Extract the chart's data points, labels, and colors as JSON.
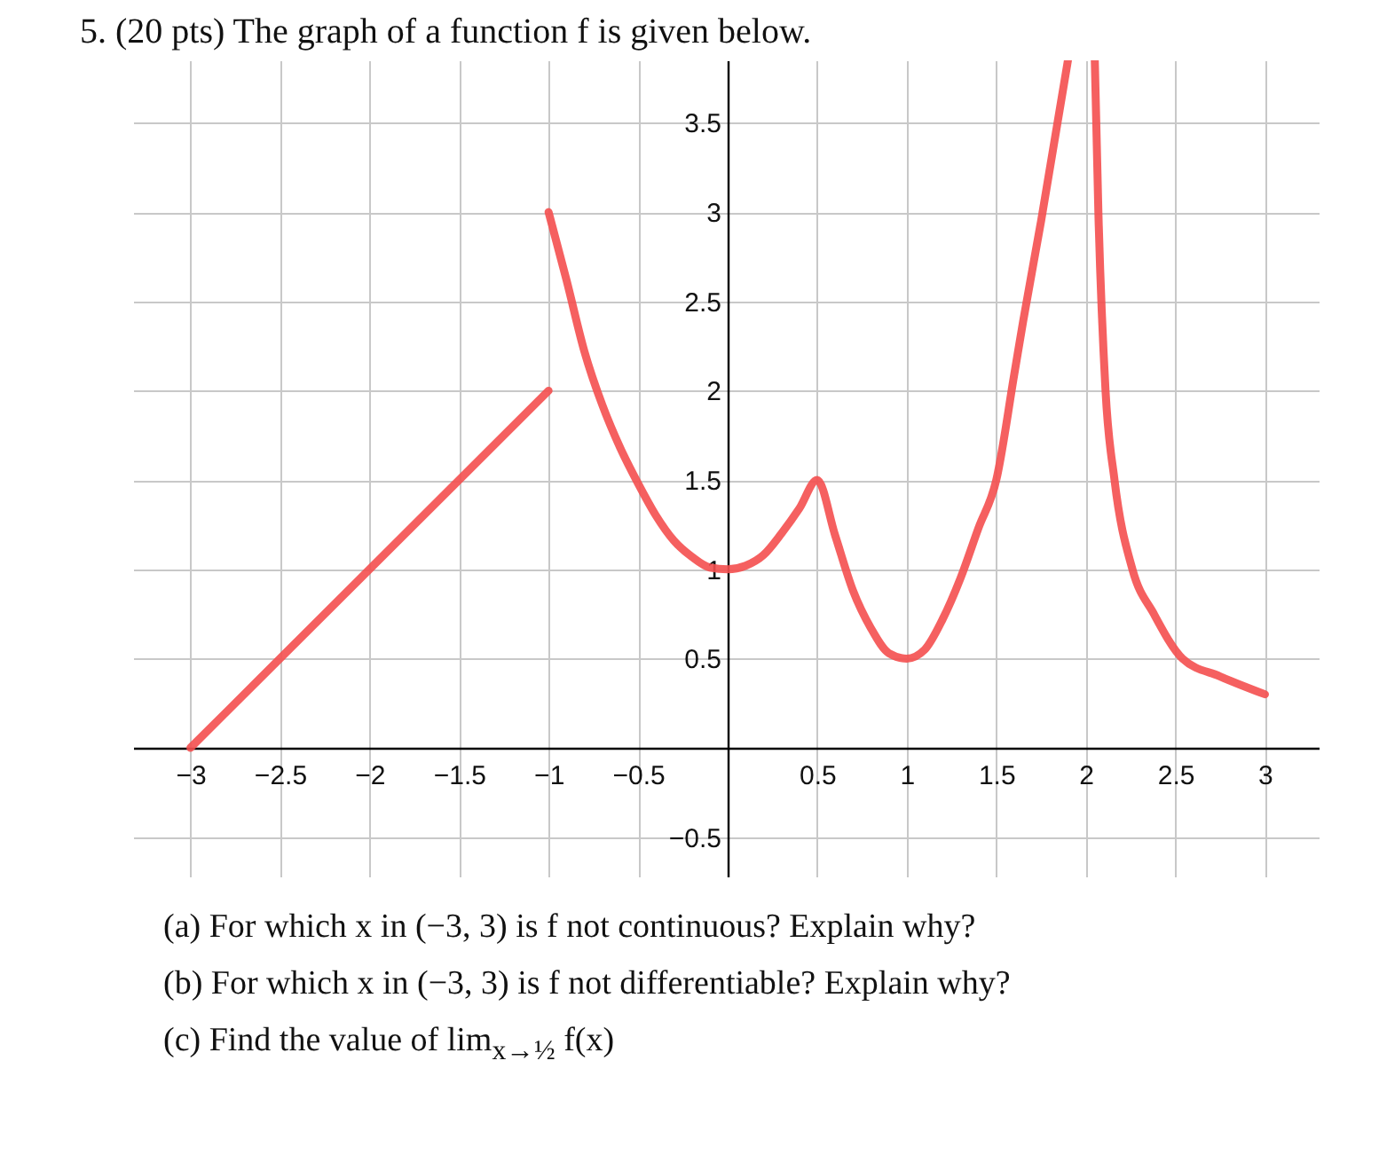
{
  "chart_data": {
    "type": "line",
    "title": "5. (20 pts) The graph of a function f is given below.",
    "annotations": [
      "(a) For which x in (−3, 3) is f not continuous? Explain why?",
      "(b) For which x in (−3, 3) is f not differentiable? Explain why?",
      "(c) Find the value of lim$_{x→½}$ f(x)"
    ],
    "xlim": [
      -3.32,
      3.3
    ],
    "ylim": [
      -0.72,
      3.85
    ],
    "xticks": [
      -3,
      -2.5,
      -2,
      -1.5,
      -1,
      -0.5,
      0.5,
      1,
      1.5,
      2,
      2.5,
      3
    ],
    "yticks": [
      -0.5,
      0.5,
      1,
      1.5,
      2,
      2.5,
      3,
      3.5
    ],
    "grid": true,
    "legend": false,
    "line_style": "solid",
    "series": [
      {
        "color": "#f44f4f",
        "x": [
          -3,
          -1
        ],
        "values": [
          0,
          2
        ]
      },
      {
        "color": "#f44f4f",
        "x": [
          -1,
          -0.9,
          -0.8,
          -0.7,
          -0.6,
          -0.5,
          -0.4,
          -0.3,
          -0.2,
          -0.1,
          0,
          0.1,
          0.2,
          0.3,
          0.4,
          0.5,
          0.6,
          0.7,
          0.8,
          0.9,
          1,
          1.1,
          1.2,
          1.3,
          1.4,
          1.5,
          1.6,
          1.65,
          1.75,
          1.9
        ],
        "values": [
          3,
          2.62,
          2.22,
          1.92,
          1.68,
          1.48,
          1.3,
          1.16,
          1.07,
          1.01,
          1,
          1.02,
          1.08,
          1.2,
          1.34,
          1.5,
          1.19,
          0.88,
          0.67,
          0.53,
          0.5,
          0.55,
          0.72,
          0.95,
          1.23,
          1.5,
          2.09,
          2.39,
          2.95,
          3.85
        ]
      },
      {
        "color": "#f44f4f",
        "x": [
          2.05,
          2.07,
          2.11,
          2.16,
          2.26,
          2.38,
          2.54,
          2.75,
          3
        ],
        "values": [
          3.85,
          3,
          2,
          1.5,
          1,
          0.75,
          0.5,
          0.4,
          0.3
        ]
      }
    ]
  }
}
